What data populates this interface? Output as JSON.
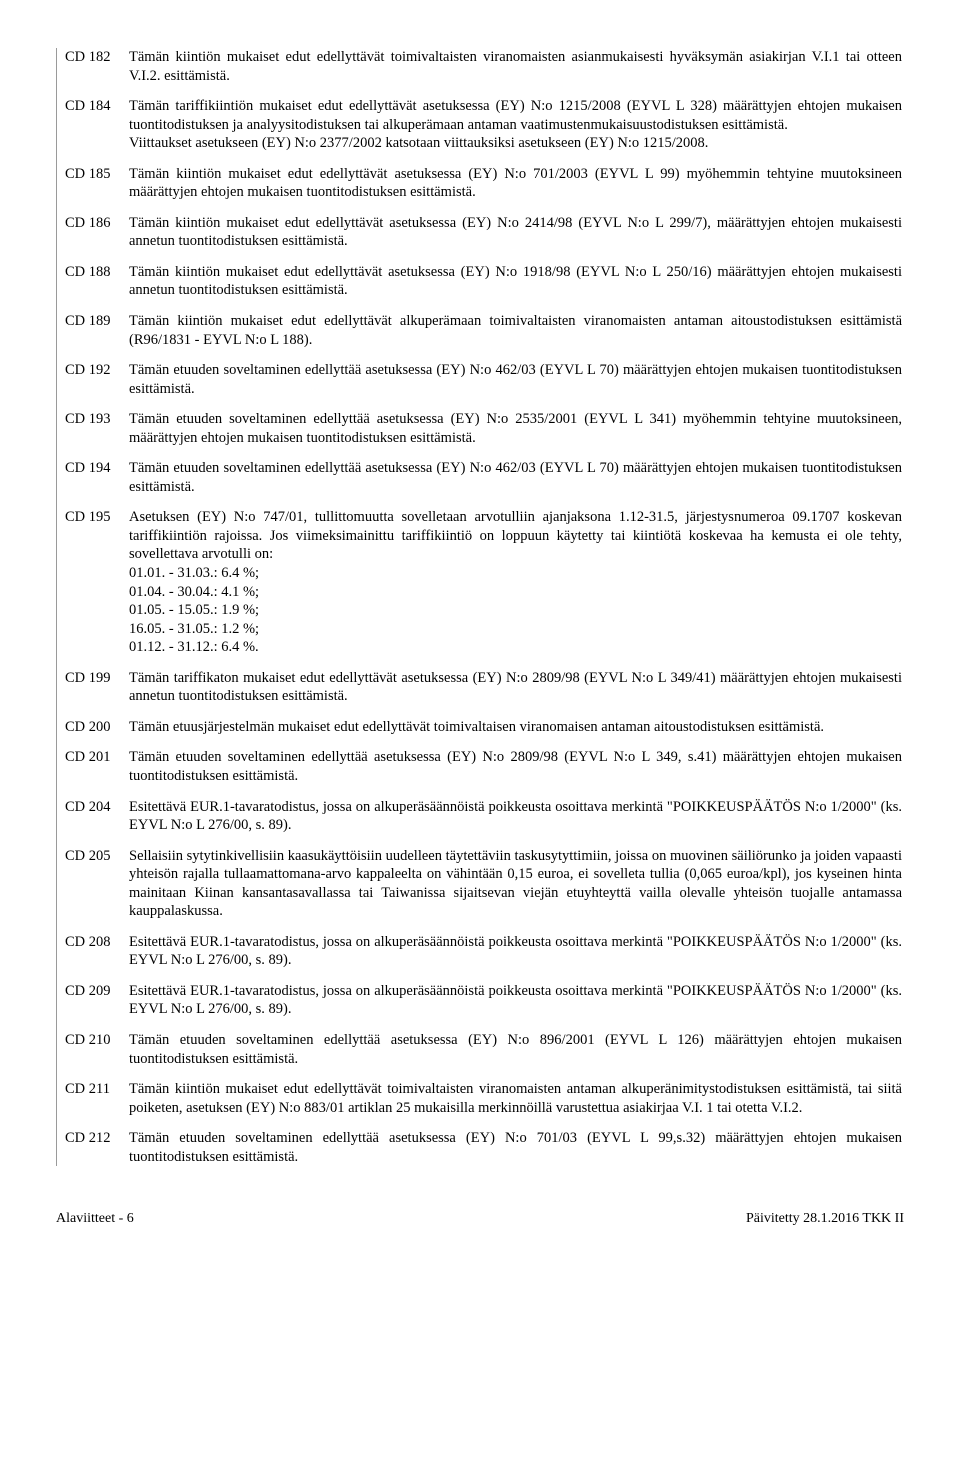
{
  "entries": [
    {
      "code": "CD 182",
      "paras": [
        "Tämän kiintiön mukaiset edut edellyttävät toimivaltaisten viranomaisten asianmukaisesti hyväksymän asiakirjan V.I.1 tai otteen V.I.2. esittämistä."
      ]
    },
    {
      "code": "CD 184",
      "paras": [
        "Tämän tariffikiintiön mukaiset edut edellyttävät asetuksessa (EY) N:o 1215/2008 (EYVL L 328) määrättyjen ehtojen mukaisen tuontitodistuksen ja analyysitodistuksen tai alkuperämaan antaman vaatimustenmukaisuustodistuksen esittämistä.",
        "Viittaukset asetukseen (EY) N:o 2377/2002 katsotaan viittauksiksi asetukseen (EY) N:o 1215/2008."
      ]
    },
    {
      "code": "CD 185",
      "paras": [
        "Tämän kiintiön mukaiset edut edellyttävät asetuksessa (EY) N:o 701/2003 (EYVL L 99) myöhemmin tehtyine muutoksineen määrättyjen ehtojen mukaisen tuontitodistuksen esittämistä."
      ]
    },
    {
      "code": "CD 186",
      "paras": [
        "Tämän kiintiön mukaiset edut edellyttävät asetuksessa (EY) N:o 2414/98 (EYVL N:o L 299/7), määrättyjen ehtojen mukaisesti annetun tuontitodistuksen esittämistä."
      ]
    },
    {
      "code": "CD 188",
      "paras": [
        "Tämän kiintiön mukaiset edut edellyttävät asetuksessa (EY) N:o 1918/98 (EYVL N:o L 250/16) määrättyjen ehtojen mukaisesti annetun tuontitodistuksen esittämistä."
      ]
    },
    {
      "code": "CD 189",
      "paras": [
        "Tämän kiintiön mukaiset edut edellyttävät alkuperämaan toimivaltaisten viranomaisten antaman aitoustodistuksen esittämistä (R96/1831 - EYVL N:o L 188)."
      ]
    },
    {
      "code": "CD 192",
      "paras": [
        "Tämän etuuden soveltaminen edellyttää asetuksessa (EY) N:o 462/03 (EYVL L 70) määrättyjen ehtojen mukaisen tuontitodistuksen esittämistä."
      ]
    },
    {
      "code": "CD 193",
      "paras": [
        "Tämän etuuden soveltaminen edellyttää asetuksessa (EY) N:o 2535/2001 (EYVL L 341) myöhemmin tehtyine muutoksineen, määrättyjen ehtojen mukaisen tuontitodistuksen esittämistä."
      ]
    },
    {
      "code": "CD 194",
      "paras": [
        "Tämän etuuden soveltaminen edellyttää asetuksessa (EY) N:o 462/03 (EYVL L 70) määrättyjen ehtojen mukaisen tuontitodistuksen esittämistä."
      ]
    },
    {
      "code": "CD 195",
      "paras": [
        "Asetuksen (EY) N:o 747/01, tullittomuutta sovelletaan arvotulliin ajanjaksona 1.12-31.5, järjestysnumeroa 09.1707 koskevan tariffikiintiön rajoissa. Jos viimeksimainittu tariffikiintiö on loppuun käytetty tai kiintiötä koskevaa ha kemusta ei ole tehty, sovellettava arvotulli on:"
      ],
      "rates": [
        "01.01.  - 31.03.: 6.4 %;",
        "01.04.  - 30.04.: 4.1 %;",
        "01.05.  - 15.05.: 1.9 %;",
        "16.05.  - 31.05.: 1.2 %;",
        "01.12.  - 31.12.: 6.4 %."
      ]
    },
    {
      "code": "CD 199",
      "paras": [
        "Tämän tariffikaton mukaiset edut edellyttävät asetuksessa (EY) N:o 2809/98 (EYVL N:o L 349/41) määrättyjen ehtojen mukaisesti annetun tuontitodistuksen esittämistä."
      ]
    },
    {
      "code": "CD 200",
      "paras": [
        "Tämän etuusjärjestelmän mukaiset edut edellyttävät toimivaltaisen viranomaisen antaman aitoustodistuksen esittämistä."
      ]
    },
    {
      "code": "CD 201",
      "paras": [
        "Tämän etuuden soveltaminen edellyttää asetuksessa (EY) N:o 2809/98 (EYVL N:o L 349, s.41) määrättyjen ehtojen mukaisen tuontitodistuksen esittämistä."
      ]
    },
    {
      "code": "CD 204",
      "paras": [
        "Esitettävä EUR.1-tavaratodistus, jossa on alkuperäsäännöistä poikkeusta osoittava merkintä \"POIKKEUSPÄÄTÖS N:o 1/2000\" (ks. EYVL N:o L 276/00, s. 89)."
      ]
    },
    {
      "code": "CD 205",
      "paras": [
        "Sellaisiin sytytinkivellisiin kaasukäyttöisiin uudelleen täytettäviin taskusytyttimiin, joissa on muovinen säiliörunko ja joiden vapaasti yhteisön rajalla tullaamattomana-arvo kappaleelta on vähintään 0,15 euroa, ei sovelleta tullia (0,065 euroa/kpl), jos kyseinen hinta mainitaan Kiinan kansantasavallassa tai Taiwanissa sijaitsevan viejän etuyhteyttä vailla olevalle yhteisön tuojalle antamassa kauppalaskussa."
      ]
    },
    {
      "code": "CD 208",
      "paras": [
        "Esitettävä EUR.1-tavaratodistus, jossa on alkuperäsäännöistä poikkeusta osoittava merkintä \"POIKKEUSPÄÄTÖS N:o 1/2000\" (ks. EYVL N:o L 276/00, s. 89)."
      ]
    },
    {
      "code": "CD 209",
      "paras": [
        "Esitettävä EUR.1-tavaratodistus, jossa on alkuperäsäännöistä poikkeusta osoittava merkintä \"POIKKEUSPÄÄTÖS N:o 1/2000\" (ks. EYVL N:o L 276/00, s. 89)."
      ]
    },
    {
      "code": "CD 210",
      "paras": [
        "Tämän etuuden soveltaminen edellyttää asetuksessa (EY) N:o 896/2001 (EYVL L 126) määrättyjen ehtojen mukaisen tuontitodistuksen esittämistä."
      ]
    },
    {
      "code": "CD 211",
      "paras": [
        "Tämän kiintiön mukaiset edut edellyttävät toimivaltaisten viranomaisten antaman alkuperänimitystodistuksen esittämistä, tai siitä poiketen, asetuksen (EY) N:o 883/01 artiklan 25 mukaisilla merkinnöillä varustettua asiakirjaa V.I. 1 tai otetta V.I.2."
      ]
    },
    {
      "code": "CD 212",
      "paras": [
        "Tämän etuuden soveltaminen edellyttää asetuksessa (EY) N:o 701/03 (EYVL L 99,s.32) määrättyjen ehtojen mukaisen tuontitodistuksen esittämistä."
      ]
    }
  ],
  "footer": {
    "left": "Alaviitteet - 6",
    "right": "Päivitetty 28.1.2016 TKK II"
  }
}
